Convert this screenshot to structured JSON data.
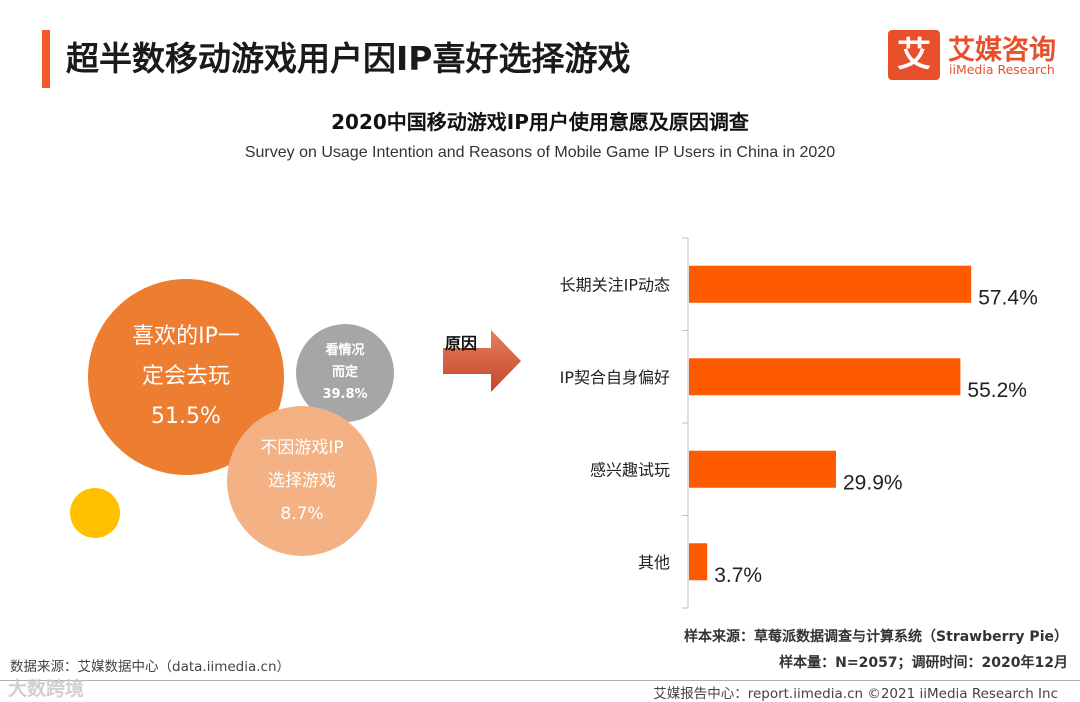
{
  "header": {
    "title": "超半数移动游戏用户因IP喜好选择游戏",
    "accent_color": "#f05a28"
  },
  "logo": {
    "mark": "艾",
    "name_cn": "艾媒咨询",
    "name_en": "iiMedia Research"
  },
  "chart_title": "2020中国移动游戏IP用户使用意愿及原因调查",
  "chart_subtitle": "Survey on Usage Intention and Reasons of Mobile Game IP Users in China in 2020",
  "bubbles": {
    "main": {
      "line1": "喜欢的IP一",
      "line2": "定会去玩",
      "value": "51.5%",
      "color": "#ed7d31"
    },
    "depends": {
      "line1": "看情况",
      "line2": "而定",
      "value": "39.8%",
      "color": "#a6a6a6"
    },
    "not_ip": {
      "line1": "不因游戏IP",
      "line2": "选择游戏",
      "value": "8.7%",
      "color": "#f4b183"
    }
  },
  "reason_label": "原因",
  "chart_data": {
    "type": "bar",
    "orientation": "horizontal",
    "categories": [
      "长期关注IP动态",
      "IP契合自身偏好",
      "感兴趣试玩",
      "其他"
    ],
    "values": [
      57.4,
      55.2,
      29.9,
      3.7
    ],
    "value_labels": [
      "57.4%",
      "55.2%",
      "29.9%",
      "3.7%"
    ],
    "xlim": [
      0,
      60
    ],
    "bar_color": "#fe5a00",
    "grid": false,
    "legend": "none"
  },
  "footer": {
    "source_left": "数据来源：艾媒数据中心（data.iimedia.cn）",
    "sample_source": "样本来源：草莓派数据调查与计算系统（Strawberry Pie）",
    "sample_size": "样本量：N=2057；调研时间：2020年12月",
    "report": "艾媒报告中心：report.iimedia.cn ©2021  iiMedia Research  Inc",
    "watermark": "大数跨境"
  }
}
